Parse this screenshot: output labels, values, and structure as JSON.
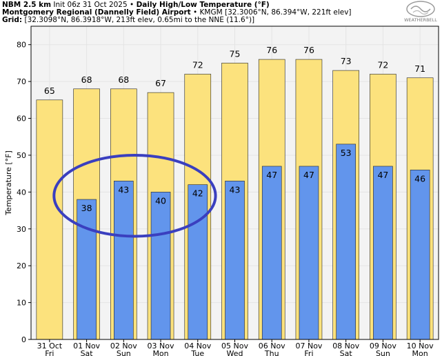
{
  "header": {
    "line1_bold": "NBM 2.5 km",
    "line1_init": "Init 06z 31 Oct 2025",
    "line1_sep": "•",
    "line1_title": "Daily High/Low Temperature (°F)",
    "line2_bold": "Montgomery Regional (Dannelly Field) Airport",
    "line2_sep": "•",
    "line2_rest": "KMGM [32.3006°N, 86.394°W, 221ft elev]",
    "line3_bold": "Grid:",
    "line3_rest": "[32.3098°N, 86.3918°W, 213ft elev, 0.65mi to the NNE (11.6°)]"
  },
  "logo": {
    "text": "WEATHERBELL"
  },
  "colors": {
    "high_bar": "#fce27d",
    "low_bar": "#6295ec",
    "bar_edge": "#222222",
    "grid": "#e4e4e4",
    "plot_bg": "#f3f3f3",
    "annotation_ellipse": "#3a3fbf"
  },
  "chart_data": {
    "type": "bar",
    "ylabel": "Temperature [°F]",
    "ylim": [
      0,
      85
    ],
    "yticks": [
      0,
      10,
      20,
      30,
      40,
      50,
      60,
      70,
      80
    ],
    "grid": true,
    "categories": [
      {
        "date": "31 Oct",
        "day": "Fri"
      },
      {
        "date": "01 Nov",
        "day": "Sat"
      },
      {
        "date": "02 Nov",
        "day": "Sun"
      },
      {
        "date": "03 Nov",
        "day": "Mon"
      },
      {
        "date": "04 Nov",
        "day": "Tue"
      },
      {
        "date": "05 Nov",
        "day": "Wed"
      },
      {
        "date": "06 Nov",
        "day": "Thu"
      },
      {
        "date": "07 Nov",
        "day": "Fri"
      },
      {
        "date": "08 Nov",
        "day": "Sat"
      },
      {
        "date": "09 Nov",
        "day": "Sun"
      },
      {
        "date": "10 Nov",
        "day": "Mon"
      }
    ],
    "series": [
      {
        "values": [
          65,
          68,
          68,
          67,
          72,
          75,
          76,
          76,
          73,
          72,
          71
        ],
        "color": "#fce27d"
      },
      {
        "values": [
          null,
          38,
          43,
          40,
          42,
          43,
          47,
          47,
          53,
          47,
          46
        ],
        "color": "#6295ec"
      }
    ],
    "annotation": {
      "shape": "ellipse",
      "highlights": [
        "01 Nov",
        "02 Nov",
        "03 Nov",
        "04 Nov"
      ]
    }
  }
}
